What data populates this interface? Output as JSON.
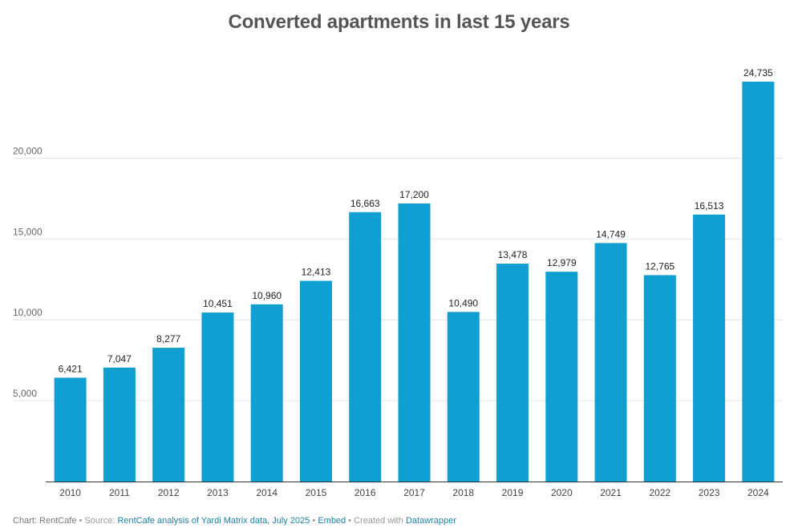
{
  "chart_data": {
    "type": "bar",
    "title": "Converted apartments in last 15 years",
    "categories": [
      "2010",
      "2011",
      "2012",
      "2013",
      "2014",
      "2015",
      "2016",
      "2017",
      "2018",
      "2019",
      "2020",
      "2021",
      "2022",
      "2023",
      "2024"
    ],
    "values": [
      6421,
      7047,
      8277,
      10451,
      10960,
      12413,
      16663,
      17200,
      10490,
      13478,
      12979,
      14749,
      12765,
      16513,
      24735
    ],
    "value_labels": [
      "6,421",
      "7,047",
      "8,277",
      "10,451",
      "10,960",
      "12,413",
      "16,663",
      "17,200",
      "10,490",
      "13,478",
      "12,979",
      "14,749",
      "12,765",
      "16,513",
      "24,735"
    ],
    "y_ticks": [
      5000,
      10000,
      15000,
      20000
    ],
    "y_tick_labels": [
      "5,000",
      "10,000",
      "15,000",
      "20,000"
    ],
    "ylim": [
      0,
      25000
    ],
    "grid": true,
    "bar_color": "#0f9fd1",
    "xlabel": "",
    "ylabel": ""
  },
  "footer": {
    "chart_credit": "Chart: RentCafe",
    "source_prefix": "• Source:",
    "source_link": "RentCafe analysis of Yardi Matrix data, July 2025",
    "embed_sep": "•",
    "embed_link": "Embed",
    "created_prefix": "• Created with",
    "created_link": "Datawrapper"
  }
}
